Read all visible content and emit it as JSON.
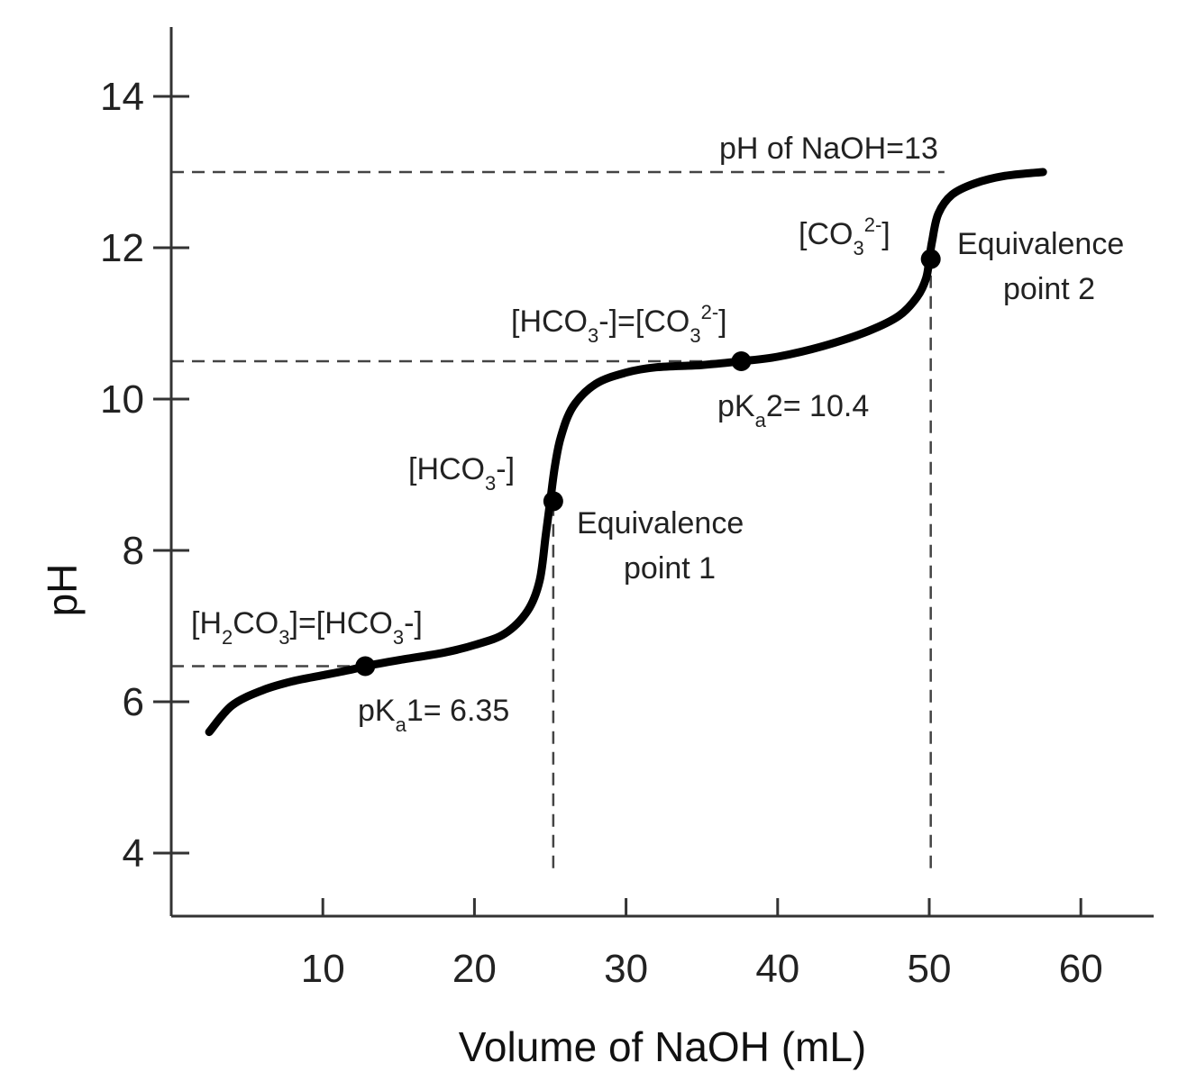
{
  "chart_data": {
    "type": "line",
    "title": "",
    "xlabel": "Volume of NaOH (mL)",
    "ylabel": "pH",
    "xlim": [
      0,
      65
    ],
    "ylim": [
      3,
      15
    ],
    "x_ticks": [
      10,
      20,
      30,
      40,
      50,
      60
    ],
    "y_ticks": [
      4,
      6,
      8,
      10,
      12,
      14
    ],
    "grid": false,
    "series": [
      {
        "name": "",
        "x": [
          2.5,
          4,
          6,
          8,
          10,
          12,
          12.8,
          15,
          18,
          20,
          22,
          23.5,
          24.3,
          24.7,
          25.0,
          25.3,
          25.7,
          26.5,
          28,
          30,
          32,
          35,
          37.6,
          40,
          43,
          46,
          48,
          49.2,
          49.8,
          50.0,
          50.2,
          50.6,
          51.5,
          53,
          55,
          57.5
        ],
        "y": [
          5.6,
          5.95,
          6.15,
          6.27,
          6.35,
          6.43,
          6.47,
          6.55,
          6.65,
          6.75,
          6.9,
          7.2,
          7.6,
          8.2,
          8.65,
          9.1,
          9.5,
          9.9,
          10.2,
          10.35,
          10.42,
          10.45,
          10.5,
          10.56,
          10.7,
          10.9,
          11.1,
          11.35,
          11.6,
          11.85,
          12.1,
          12.45,
          12.7,
          12.85,
          12.95,
          13.0
        ]
      }
    ],
    "points": [
      {
        "x": 12.8,
        "y": 6.47
      },
      {
        "x": 25.2,
        "y": 8.65
      },
      {
        "x": 37.6,
        "y": 10.5
      },
      {
        "x": 50.1,
        "y": 11.85
      }
    ],
    "reference_lines": [
      {
        "type": "horizontal",
        "y": 13,
        "x_from": 0,
        "x_to": 51
      },
      {
        "type": "horizontal",
        "y": 10.5,
        "x_from": 0,
        "x_to": 37.6
      },
      {
        "type": "horizontal",
        "y": 6.47,
        "x_from": 0,
        "x_to": 12.8
      },
      {
        "type": "vertical",
        "x": 25.2,
        "y_from": 3.8,
        "y_to": 8.65
      },
      {
        "type": "vertical",
        "x": 50.1,
        "y_from": 3.8,
        "y_to": 11.85
      }
    ],
    "annotations": {
      "naoh_ph": "pH of NaOH=13",
      "co3": {
        "pre": "[CO",
        "sub": "3",
        "sup": "2-",
        "post": "]"
      },
      "eq2_line1": "Equivalence",
      "eq2_line2": "point 2",
      "hco3_eq_co3": {
        "a": "[HCO",
        "a_sub": "3",
        "b": "-]=[CO",
        "b_sub": "3",
        "b_sup": "2-",
        "c": "]"
      },
      "pka2": {
        "pre": "pK",
        "sub": "a",
        "post": "2= 10.4"
      },
      "hco3": {
        "pre": "[HCO",
        "sub": "3",
        "post": "-]"
      },
      "eq1_line1": "Equivalence",
      "eq1_line2": "point 1",
      "h2co3_eq_hco3": {
        "a": "[H",
        "a_sub": "2",
        "b": "CO",
        "b_sub": "3",
        "c": "]=[HCO",
        "c_sub": "3",
        "d": "-]"
      },
      "pka1": {
        "pre": "pK",
        "sub": "a",
        "post": "1= 6.35"
      }
    },
    "colors": {
      "curve": "#000000",
      "guides": "#444444",
      "text": "#222222"
    }
  }
}
